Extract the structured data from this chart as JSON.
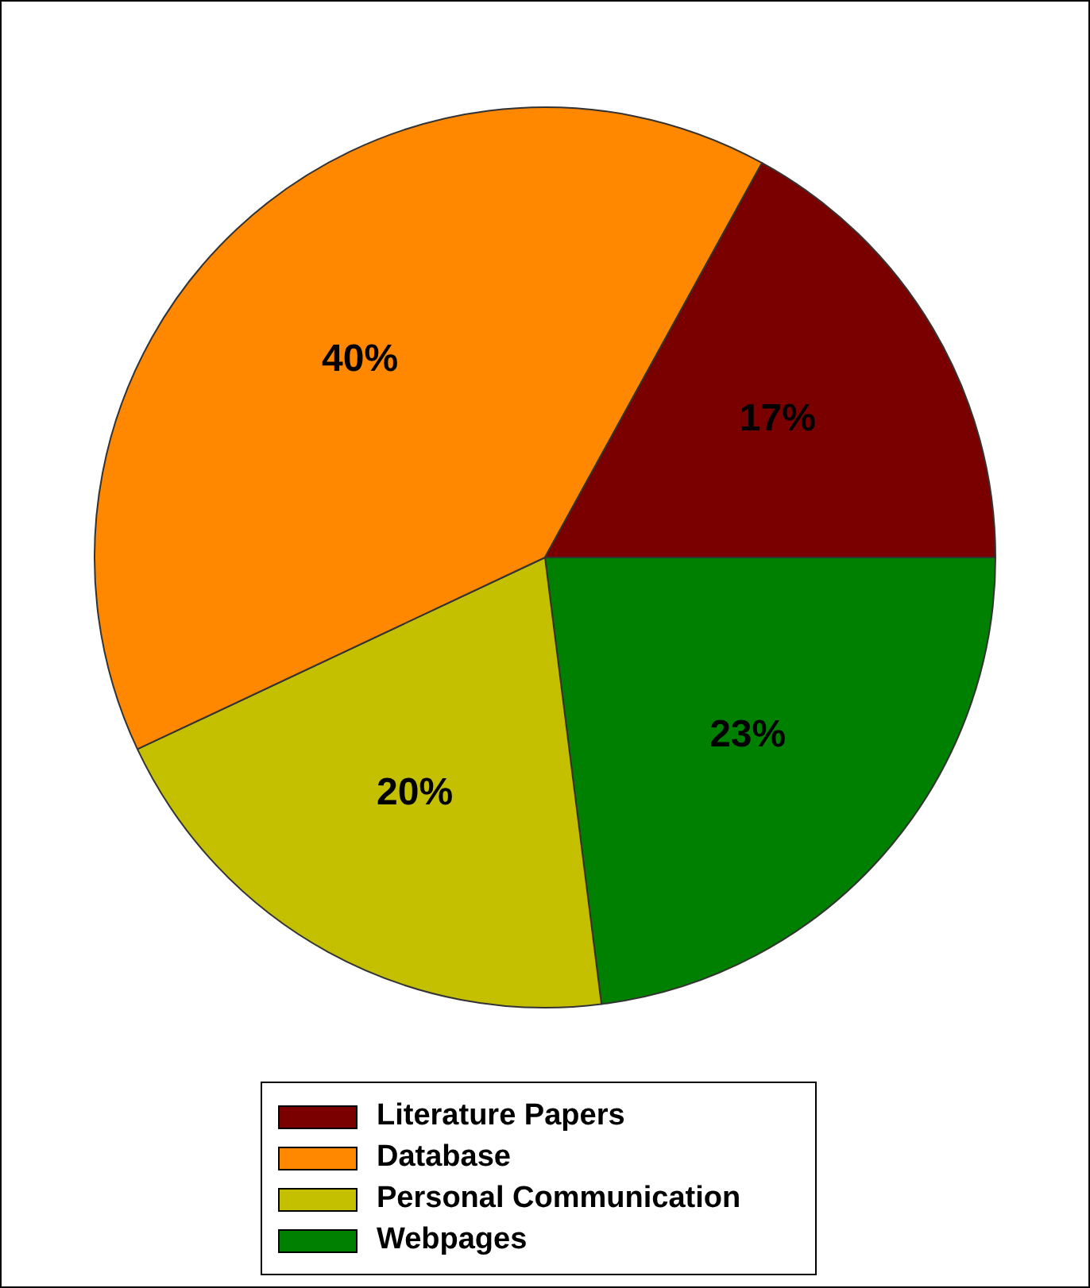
{
  "chart_data": {
    "type": "pie",
    "categories": [
      "Literature Papers",
      "Database",
      "Personal Communication",
      "Webpages"
    ],
    "values": [
      17,
      40,
      20,
      23
    ],
    "colors": [
      "#7a0000",
      "#ff8800",
      "#c4c000",
      "#008000"
    ],
    "value_labels": [
      "17%",
      "40%",
      "20%",
      "23%"
    ],
    "legend": "bottom"
  }
}
